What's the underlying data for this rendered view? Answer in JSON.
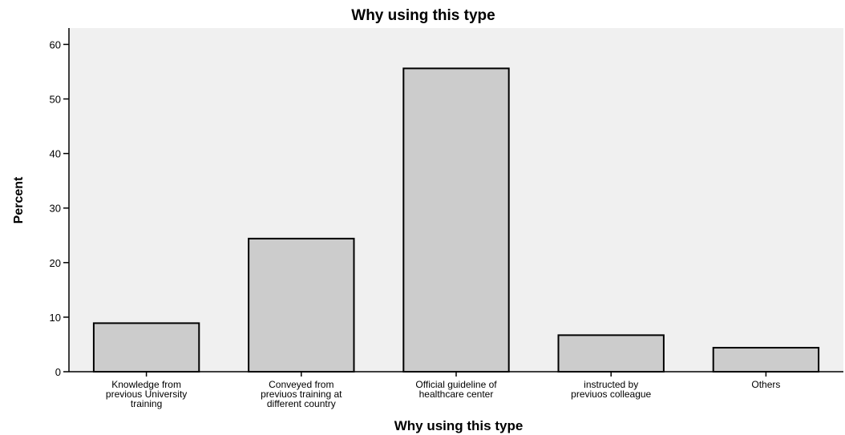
{
  "chart_data": {
    "type": "bar",
    "title": "Why using this type",
    "xlabel": "Why using this type",
    "ylabel": "Percent",
    "categories": [
      [
        "Knowledge from",
        "previous University",
        "training"
      ],
      [
        "Conveyed from",
        "previuos training at",
        "different country"
      ],
      [
        "Official guideline of",
        "healthcare center"
      ],
      [
        "instructed by",
        "previuos colleague"
      ],
      [
        "Others"
      ]
    ],
    "values": [
      8.9,
      24.4,
      55.6,
      6.7,
      4.4
    ],
    "ylim": [
      0,
      63
    ],
    "yticks": [
      0,
      10,
      20,
      30,
      40,
      50,
      60
    ],
    "grid": false,
    "colors": {
      "plot_background": "#f0f0f0",
      "bar_fill": "#cccccc",
      "bar_edge": "#000000"
    }
  }
}
